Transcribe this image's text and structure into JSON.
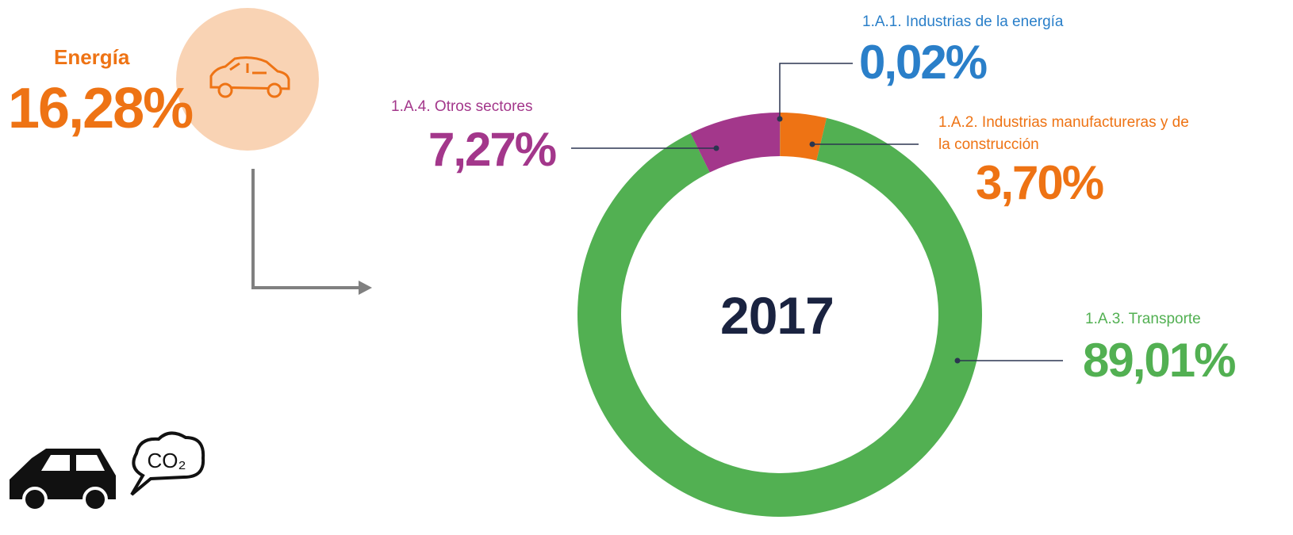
{
  "source": {
    "label": "Energía",
    "value_label": "16,28%"
  },
  "chart_data": {
    "type": "donut",
    "center_label": "2017",
    "categories": [
      "1.A.1. Industrias de la energía",
      "1.A.2. Industrias manufactureras y de la construcción",
      "1.A.3. Transporte",
      "1.A.4. Otros sectores"
    ],
    "values": [
      0.02,
      3.7,
      89.01,
      7.27
    ],
    "value_labels": [
      "0,02%",
      "3,70%",
      "89,01%",
      "7,27%"
    ],
    "colors": [
      "#2a7fc9",
      "#ee7314",
      "#52b052",
      "#a3378b"
    ]
  }
}
